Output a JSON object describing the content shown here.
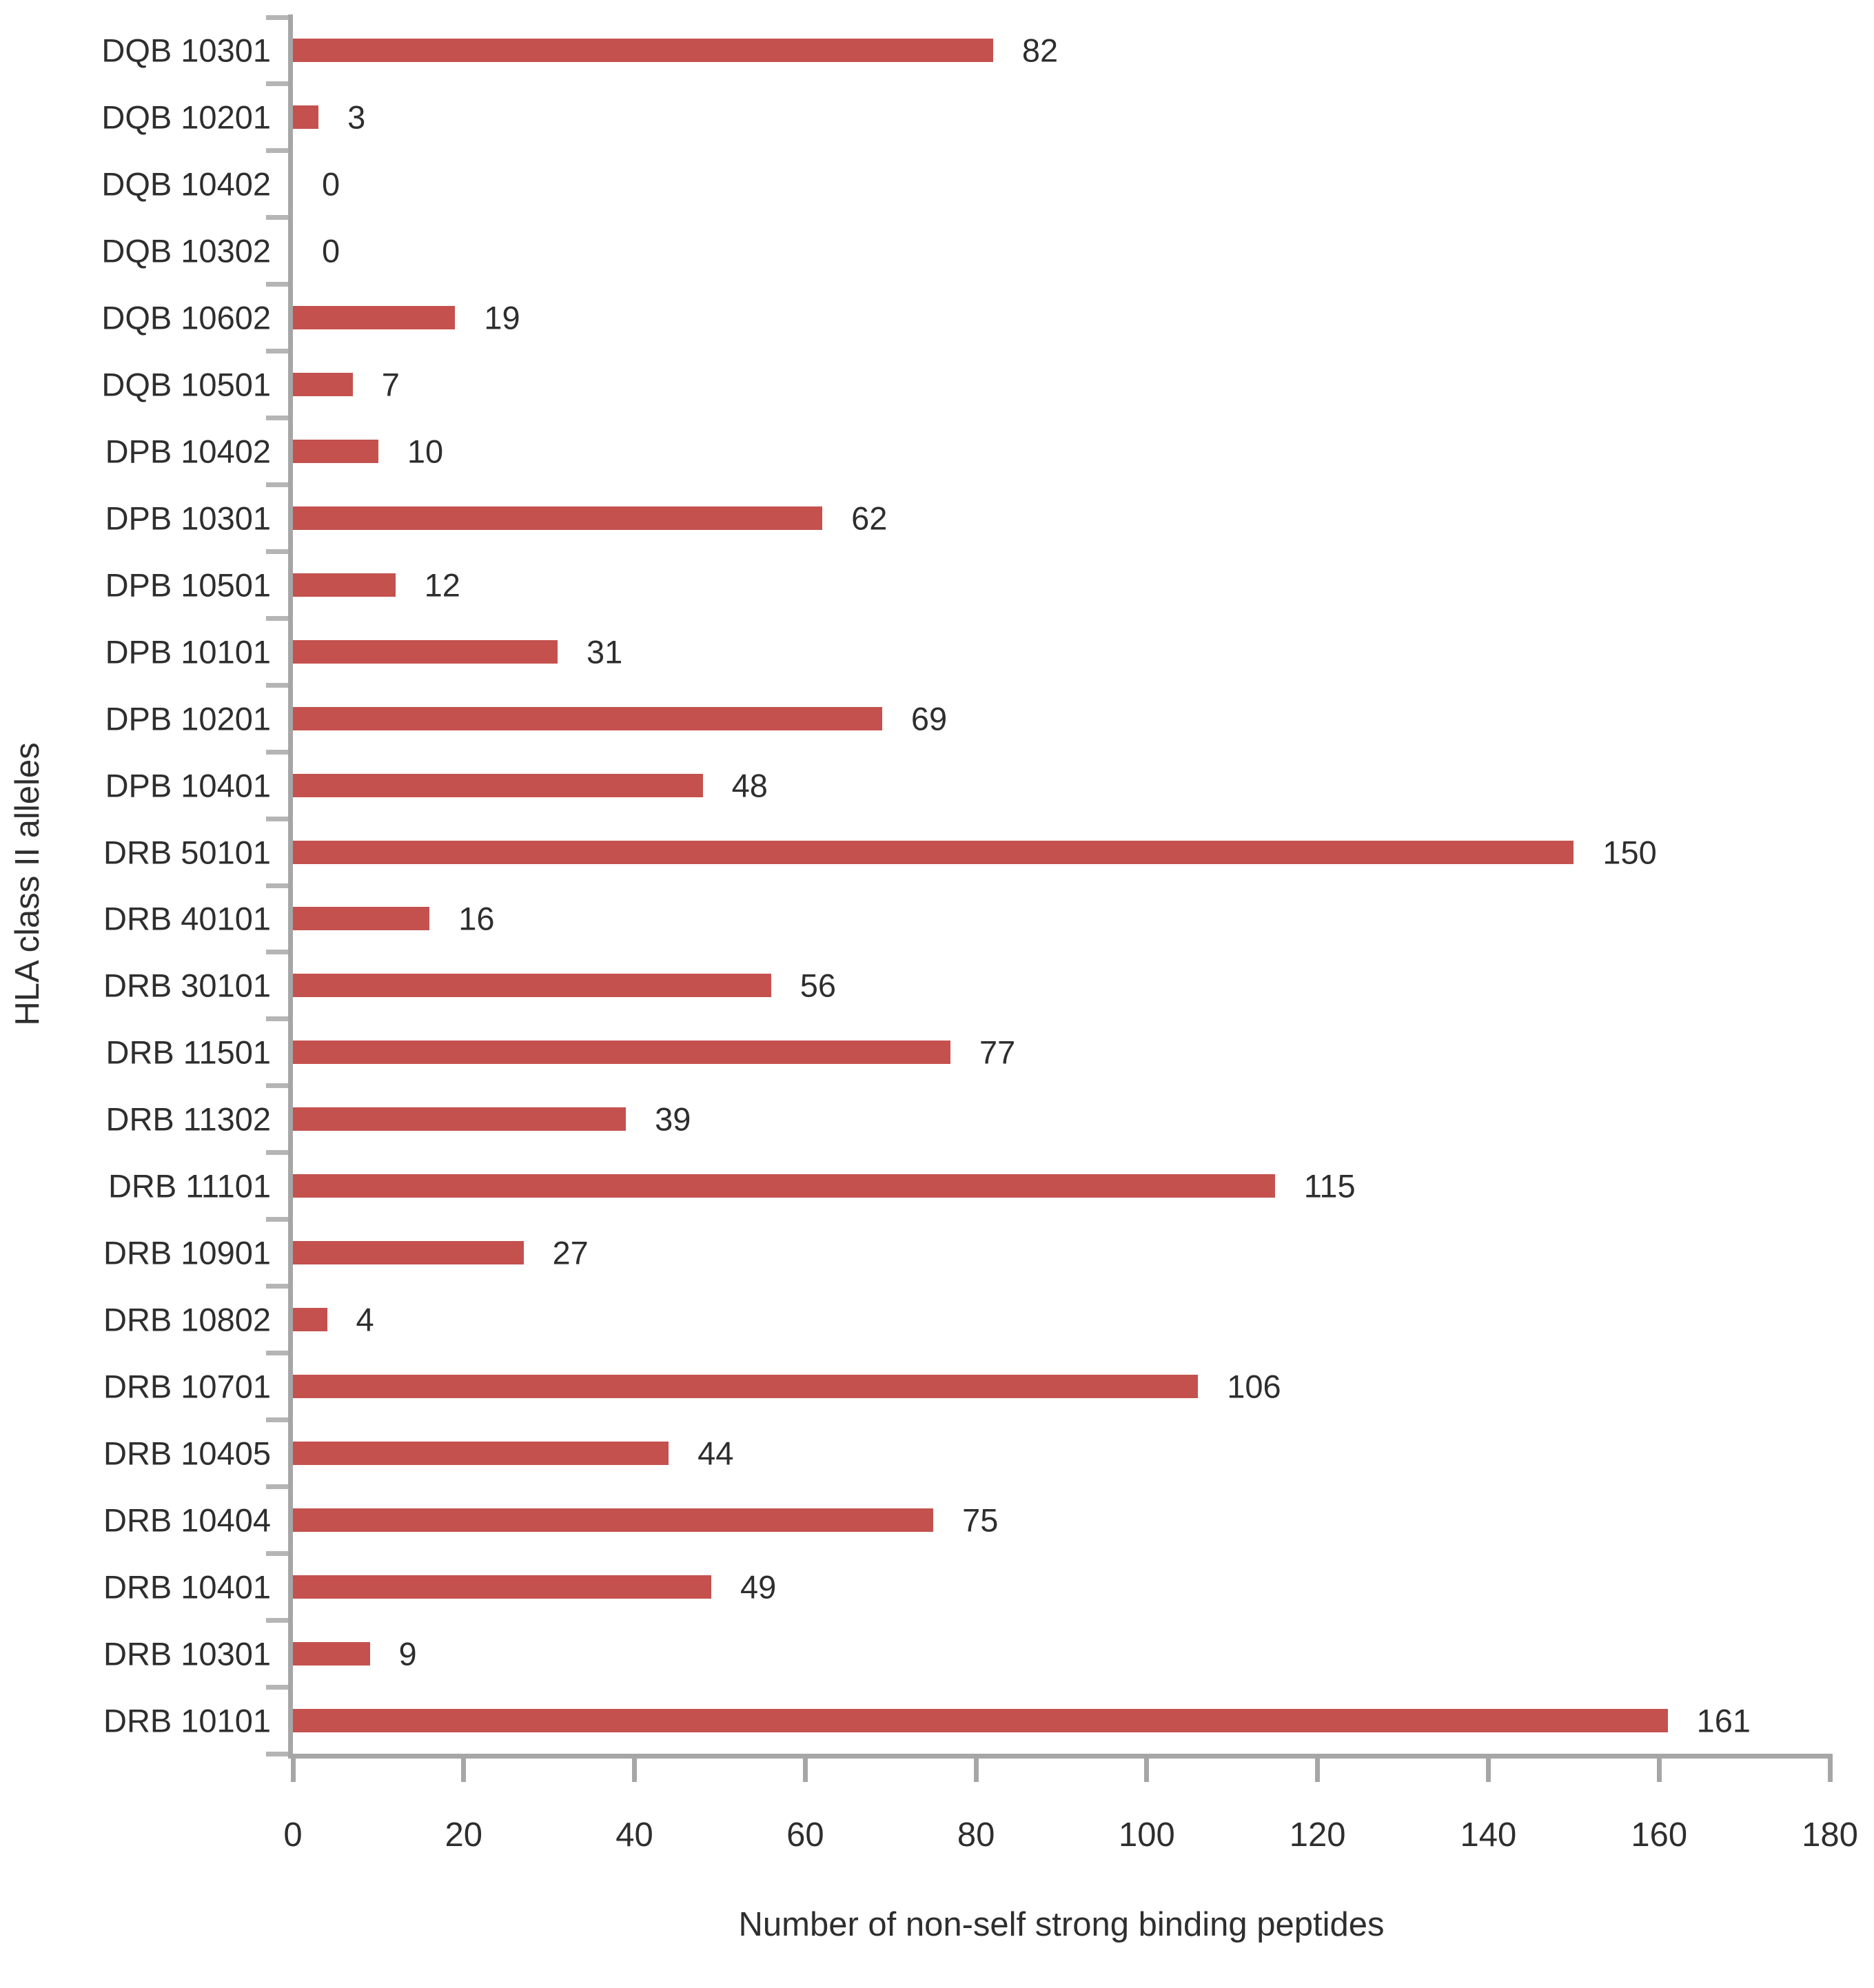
{
  "chart_data": {
    "type": "bar",
    "orientation": "horizontal",
    "title": "",
    "xlabel": "Number of non-self strong binding peptides",
    "ylabel": "HLA class II alleles",
    "xlim": [
      0,
      180
    ],
    "xticks": [
      0,
      20,
      40,
      60,
      80,
      100,
      120,
      140,
      160,
      180
    ],
    "grid": false,
    "legend": "none",
    "data_labels_shown": true,
    "categories": [
      "DQB 10301",
      "DQB 10201",
      "DQB 10402",
      "DQB 10302",
      "DQB 10602",
      "DQB 10501",
      "DPB 10402",
      "DPB 10301",
      "DPB 10501",
      "DPB 10101",
      "DPB 10201",
      "DPB 10401",
      "DRB 50101",
      "DRB 40101",
      "DRB 30101",
      "DRB 11501",
      "DRB 11302",
      "DRB 11101",
      "DRB 10901",
      "DRB 10802",
      "DRB 10701",
      "DRB 10405",
      "DRB 10404",
      "DRB 10401",
      "DRB 10301",
      "DRB 10101"
    ],
    "values": [
      82,
      3,
      0,
      0,
      19,
      7,
      10,
      62,
      12,
      31,
      69,
      48,
      150,
      16,
      56,
      77,
      39,
      115,
      27,
      4,
      106,
      44,
      75,
      49,
      9,
      161
    ],
    "bar_color": "#C4514E",
    "axis_color": "#A6A6A6",
    "tick_color": "#B5B5B5",
    "text_color": "#2E2E2E",
    "background_color": "#FFFFFF"
  }
}
